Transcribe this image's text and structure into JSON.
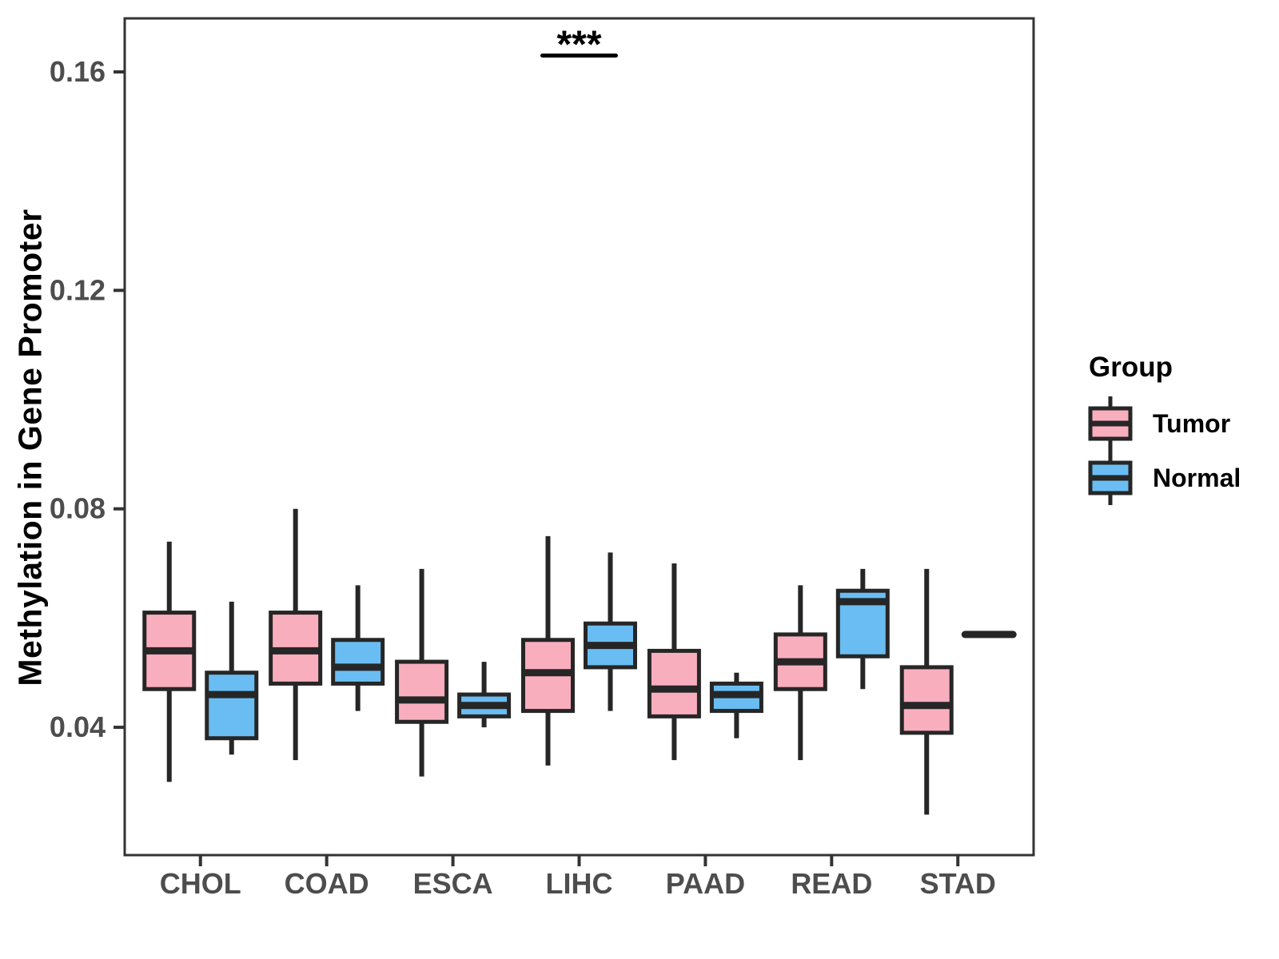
{
  "chart_data": {
    "type": "grouped_boxplot",
    "ylabel": "Methylation in Gene Promoter",
    "xlabel": "",
    "ylim": [
      0.0166,
      0.1698
    ],
    "yticks": [
      0.04,
      0.08,
      0.12,
      0.16
    ],
    "ytick_labels": [
      "0.04",
      "0.08",
      "0.12",
      "0.16"
    ],
    "categories": [
      "CHOL",
      "COAD",
      "ESCA",
      "LIHC",
      "PAAD",
      "READ",
      "STAD"
    ],
    "grid": "off",
    "legend": {
      "title": "Group",
      "position": "right",
      "entries": [
        {
          "label": "Tumor",
          "color": "#F9AEBE"
        },
        {
          "label": "Normal",
          "color": "#6ABDF2"
        }
      ]
    },
    "series": [
      {
        "name": "Tumor",
        "color": "#F9AEBE",
        "boxes": [
          {
            "category": "CHOL",
            "whisker_low": 0.03,
            "q1": 0.047,
            "median": 0.054,
            "q3": 0.061,
            "whisker_high": 0.074
          },
          {
            "category": "COAD",
            "whisker_low": 0.034,
            "q1": 0.048,
            "median": 0.054,
            "q3": 0.061,
            "whisker_high": 0.08
          },
          {
            "category": "ESCA",
            "whisker_low": 0.031,
            "q1": 0.041,
            "median": 0.045,
            "q3": 0.052,
            "whisker_high": 0.069
          },
          {
            "category": "LIHC",
            "whisker_low": 0.033,
            "q1": 0.043,
            "median": 0.05,
            "q3": 0.056,
            "whisker_high": 0.075
          },
          {
            "category": "PAAD",
            "whisker_low": 0.034,
            "q1": 0.042,
            "median": 0.047,
            "q3": 0.054,
            "whisker_high": 0.07
          },
          {
            "category": "READ",
            "whisker_low": 0.034,
            "q1": 0.047,
            "median": 0.052,
            "q3": 0.057,
            "whisker_high": 0.066
          },
          {
            "category": "STAD",
            "whisker_low": 0.024,
            "q1": 0.039,
            "median": 0.044,
            "q3": 0.051,
            "whisker_high": 0.069
          }
        ]
      },
      {
        "name": "Normal",
        "color": "#6ABDF2",
        "boxes": [
          {
            "category": "CHOL",
            "whisker_low": 0.035,
            "q1": 0.038,
            "median": 0.046,
            "q3": 0.05,
            "whisker_high": 0.063
          },
          {
            "category": "COAD",
            "whisker_low": 0.043,
            "q1": 0.048,
            "median": 0.051,
            "q3": 0.056,
            "whisker_high": 0.066
          },
          {
            "category": "ESCA",
            "whisker_low": 0.04,
            "q1": 0.042,
            "median": 0.044,
            "q3": 0.046,
            "whisker_high": 0.052
          },
          {
            "category": "LIHC",
            "whisker_low": 0.043,
            "q1": 0.051,
            "median": 0.055,
            "q3": 0.059,
            "whisker_high": 0.072
          },
          {
            "category": "PAAD",
            "whisker_low": 0.038,
            "q1": 0.043,
            "median": 0.046,
            "q3": 0.048,
            "whisker_high": 0.05
          },
          {
            "category": "READ",
            "whisker_low": 0.047,
            "q1": 0.053,
            "median": 0.063,
            "q3": 0.065,
            "whisker_high": 0.069
          },
          {
            "category": "STAD",
            "single_value": 0.057
          }
        ]
      }
    ],
    "annotations": [
      {
        "label": "***",
        "category": "LIHC",
        "y": 0.163,
        "underline": true
      }
    ],
    "colors": {
      "box_outline": "#262626",
      "panel_border": "#333333",
      "tick_label": "#4d4d4d",
      "annotation": "#000000"
    }
  }
}
